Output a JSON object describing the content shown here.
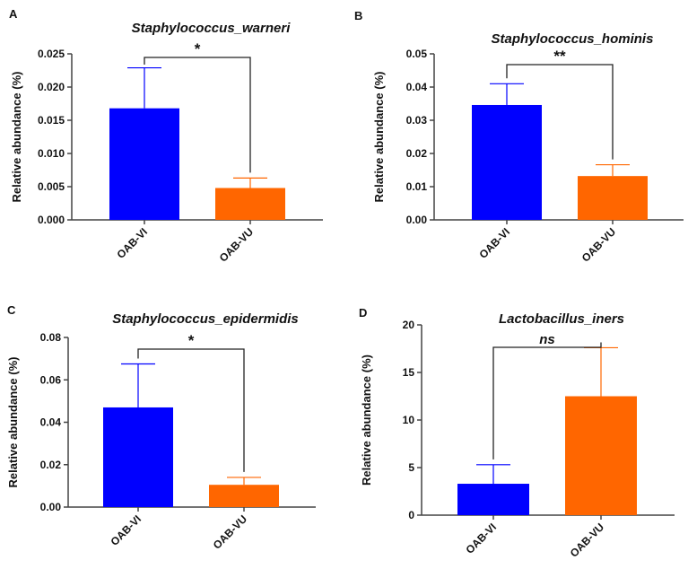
{
  "colors": {
    "OAB-VI": "#0000ff",
    "OAB-VU": "#ff6600",
    "axis": "#444444"
  },
  "chart_data": [
    {
      "type": "bar",
      "panel": "A",
      "title": "Staphylococcus_warneri",
      "ylabel": "Relative abundance (%)",
      "categories": [
        "OAB-VI",
        "OAB-VU"
      ],
      "values": [
        0.0168,
        0.0048
      ],
      "error_upper": [
        0.0229,
        0.0063
      ],
      "ylim": [
        0,
        0.025
      ],
      "yticks": [
        "0.000",
        "0.005",
        "0.010",
        "0.015",
        "0.020",
        "0.025"
      ],
      "significance": "*"
    },
    {
      "type": "bar",
      "panel": "B",
      "title": "Staphylococcus_hominis",
      "ylabel": "Relative abundance (%)",
      "categories": [
        "OAB-VI",
        "OAB-VU"
      ],
      "values": [
        0.0346,
        0.0132
      ],
      "error_upper": [
        0.041,
        0.0166
      ],
      "ylim": [
        0,
        0.05
      ],
      "yticks": [
        "0.00",
        "0.01",
        "0.02",
        "0.03",
        "0.04",
        "0.05"
      ],
      "significance": "**"
    },
    {
      "type": "bar",
      "panel": "C",
      "title": "Staphylococcus_epidermidis",
      "ylabel": "Relative abundance (%)",
      "categories": [
        "OAB-VI",
        "OAB-VU"
      ],
      "values": [
        0.047,
        0.0105
      ],
      "error_upper": [
        0.0675,
        0.014
      ],
      "ylim": [
        0,
        0.08
      ],
      "yticks": [
        "0.00",
        "0.02",
        "0.04",
        "0.06",
        "0.08"
      ],
      "significance": "*"
    },
    {
      "type": "bar",
      "panel": "D",
      "title": "Lactobacillus_iners",
      "ylabel": "Relative abundance (%)",
      "categories": [
        "OAB-VI",
        "OAB-VU"
      ],
      "values": [
        3.3,
        12.5
      ],
      "error_upper": [
        5.3,
        17.6
      ],
      "ylim": [
        0,
        20
      ],
      "yticks": [
        "0",
        "5",
        "10",
        "15",
        "20"
      ],
      "significance": "ns"
    }
  ]
}
